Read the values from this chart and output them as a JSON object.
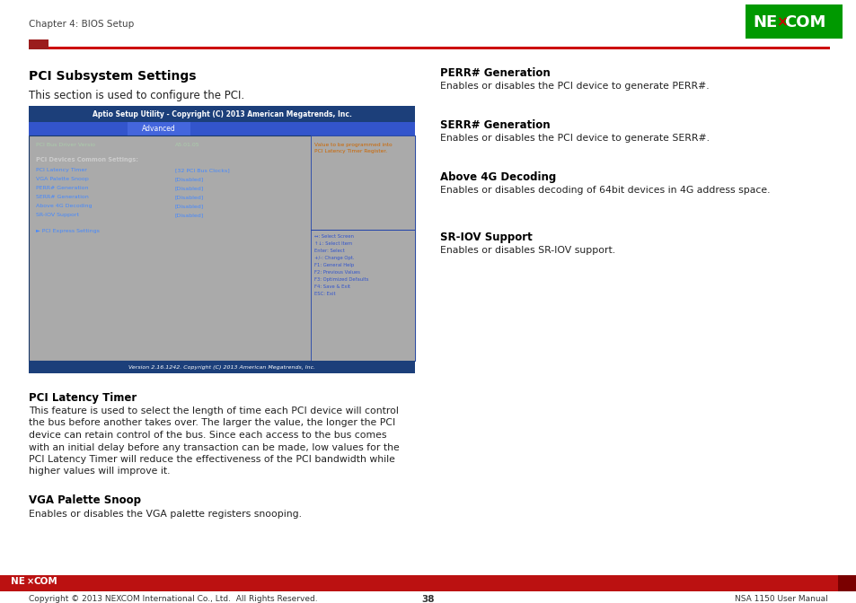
{
  "page_header_left": "Chapter 4: BIOS Setup",
  "title": "PCI Subsystem Settings",
  "subtitle": "This section is used to configure the PCI.",
  "bios_title": "Aptio Setup Utility - Copyright (C) 2013 American Megatrends, Inc.",
  "bios_tab": "Advanced",
  "bios_bg_dark": "#1c3f7a",
  "bios_tab_active": "#3355cc",
  "bios_body_bg": "#aaaaaa",
  "bios_driver_label": "PCI Bus Driver Versio",
  "bios_driver_value": "A5.01.05",
  "bios_common_label": "PCI Devices Common Settings:",
  "bios_items": [
    [
      "PCI Latency Timer",
      "[32 PCI Bus Clocks]"
    ],
    [
      "VGA Palette Snoop",
      "[Disabled]"
    ],
    [
      "PERR# Generation",
      "[Disabled]"
    ],
    [
      "SERR# Generation",
      "[Disabled]"
    ],
    [
      "Above 4G Decoding",
      "[Disabled]"
    ],
    [
      "SR-IOV Support",
      "[Disabled]"
    ]
  ],
  "bios_link": "► PCI Express Settings",
  "bios_help_title": "Value to be programmed into\nPCI Latency Timer Register.",
  "bios_keys": [
    "↔: Select Screen",
    "↑↓: Select Item",
    "Enter: Select",
    "+/-: Change Opt.",
    "F1: General Help",
    "F2: Previous Values",
    "F3: Optimized Defaults",
    "F4: Save & Exit",
    "ESC: Exit"
  ],
  "bios_footer": "Version 2.16.1242. Copyright (C) 2013 American Megatrends, Inc.",
  "right_sections": [
    {
      "heading": "PERR# Generation",
      "body": "Enables or disables the PCI device to generate PERR#."
    },
    {
      "heading": "SERR# Generation",
      "body": "Enables or disables the PCI device to generate SERR#."
    },
    {
      "heading": "Above 4G Decoding",
      "body": "Enables or disables decoding of 64bit devices in 4G address space."
    },
    {
      "heading": "SR-IOV Support",
      "body": "Enables or disables SR-IOV support."
    }
  ],
  "bottom_sections": [
    {
      "heading": "PCI Latency Timer",
      "body": "This feature is used to select the length of time each PCI device will control\nthe bus before another takes over. The larger the value, the longer the PCI\ndevice can retain control of the bus. Since each access to the bus comes\nwith an initial delay before any transaction can be made, low values for the\nPCI Latency Timer will reduce the effectiveness of the PCI bandwidth while\nhigher values will improve it."
    },
    {
      "heading": "VGA Palette Snoop",
      "body": "Enables or disables the VGA palette registers snooping."
    }
  ],
  "footer_copyright": "Copyright © 2013 NEXCOM International Co., Ltd.  All Rights Reserved.",
  "footer_page": "38",
  "footer_manual": "NSA 1150 User Manual",
  "header_line_color": "#cc0000",
  "header_rect_color": "#9b1c1c",
  "nexcom_green": "#009900",
  "footer_red": "#bb1111",
  "footer_dark_red": "#7a0000"
}
